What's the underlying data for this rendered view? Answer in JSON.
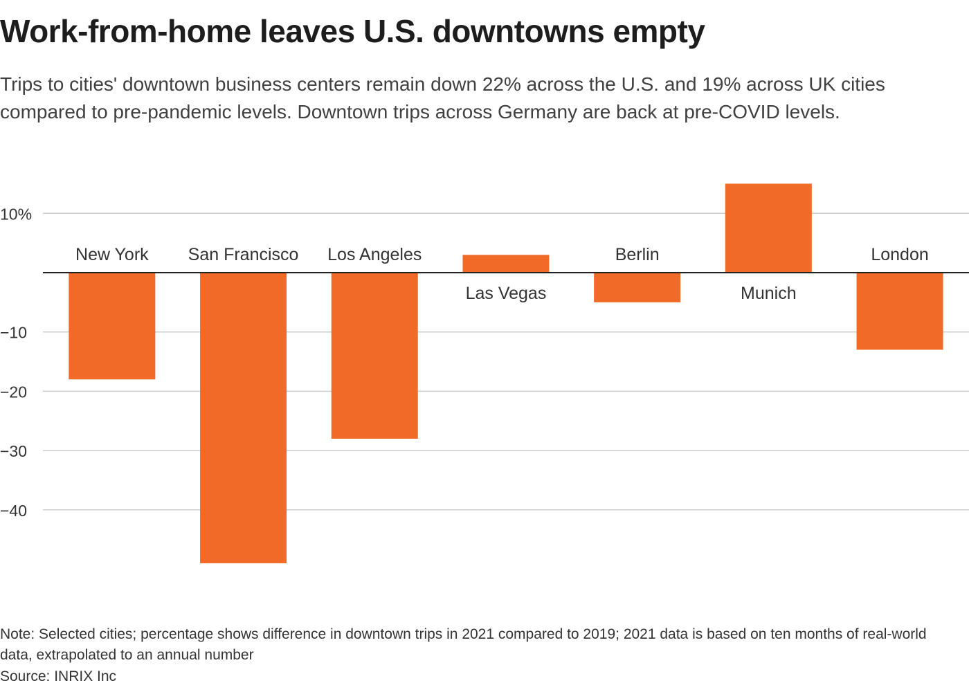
{
  "header": {
    "title": "Work-from-home leaves U.S. downtowns empty",
    "subtitle": "Trips to cities' downtown business centers remain down 22% across the U.S. and 19% across UK cities compared to pre-pandemic levels. Downtown trips across Germany are back at pre-COVID levels."
  },
  "footer": {
    "note": "Note: Selected cities; percentage shows difference in downtown trips in 2021 compared to 2019; 2021 data is based on ten months of real-world data, extrapolated to an annual number",
    "source": "Source: INRIX Inc"
  },
  "colors": {
    "bar": "#f26a27",
    "grid": "#cccccc",
    "axis": "#222222",
    "label": "#333333"
  },
  "chart_data": {
    "type": "bar",
    "categories": [
      "New York",
      "San Francisco",
      "Los Angeles",
      "Las Vegas",
      "Berlin",
      "Munich",
      "London"
    ],
    "values": [
      -18,
      -49,
      -28,
      3,
      -5,
      15,
      -13
    ],
    "ylim": [
      -51,
      15
    ],
    "yticks": [
      10,
      -10,
      -20,
      -30,
      -40
    ],
    "ytick_labels": [
      "10%",
      "−10",
      "−20",
      "−30",
      "−40"
    ],
    "grid": true,
    "xlabel": "",
    "ylabel": ""
  }
}
